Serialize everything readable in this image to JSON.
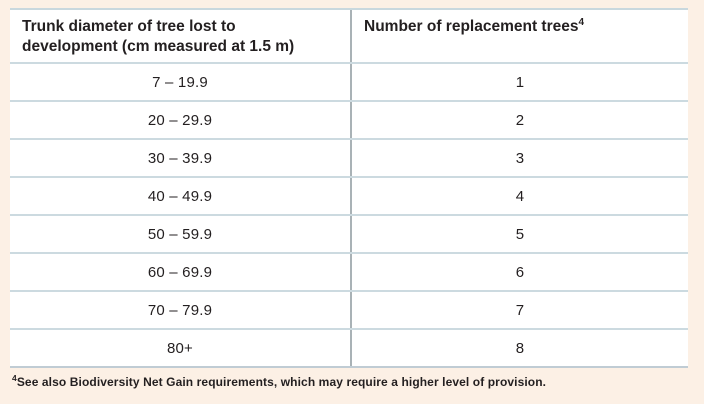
{
  "table": {
    "header": {
      "col1": "Trunk diameter of tree lost to development (cm measured at 1.5 m)",
      "col2": "Number of replacement trees",
      "col2_superscript": "4"
    },
    "rows": [
      {
        "trunk_diameter": "7 – 19.9",
        "replacement_trees": "1"
      },
      {
        "trunk_diameter": "20 – 29.9",
        "replacement_trees": "2"
      },
      {
        "trunk_diameter": "30 – 39.9",
        "replacement_trees": "3"
      },
      {
        "trunk_diameter": "40 – 49.9",
        "replacement_trees": "4"
      },
      {
        "trunk_diameter": "50 – 59.9",
        "replacement_trees": "5"
      },
      {
        "trunk_diameter": "60 – 69.9",
        "replacement_trees": "6"
      },
      {
        "trunk_diameter": "70 – 79.9",
        "replacement_trees": "7"
      },
      {
        "trunk_diameter": "80+",
        "replacement_trees": "8"
      }
    ]
  },
  "footnote": {
    "superscript": "4",
    "text": "See also Biodiversity Net Gain requirements, which may require a higher level of provision."
  },
  "colors": {
    "page_background": "#fcf0e5",
    "table_background": "#ffffff",
    "row_line": "#ccdae0",
    "column_divider": "#a9b2b6",
    "text": "#231f20"
  }
}
